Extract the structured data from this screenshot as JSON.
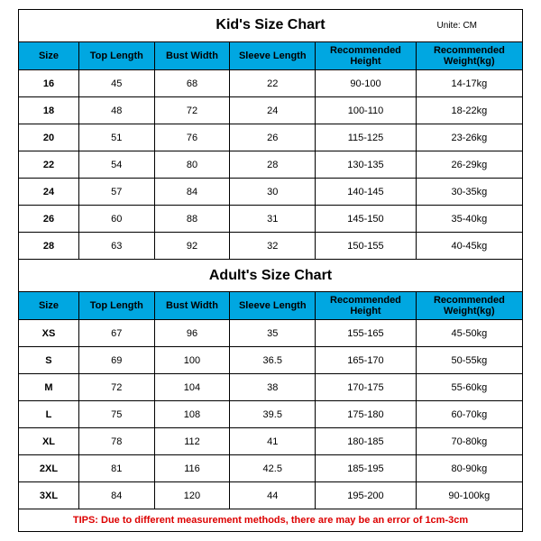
{
  "kids": {
    "title": "Kid's Size Chart",
    "unit": "Unite: CM",
    "columns": [
      "Size",
      "Top Length",
      "Bust Width",
      "Sleeve Length",
      "Recommended Height",
      "Recommended Weight(kg)"
    ],
    "rows": [
      [
        "16",
        "45",
        "68",
        "22",
        "90-100",
        "14-17kg"
      ],
      [
        "18",
        "48",
        "72",
        "24",
        "100-110",
        "18-22kg"
      ],
      [
        "20",
        "51",
        "76",
        "26",
        "115-125",
        "23-26kg"
      ],
      [
        "22",
        "54",
        "80",
        "28",
        "130-135",
        "26-29kg"
      ],
      [
        "24",
        "57",
        "84",
        "30",
        "140-145",
        "30-35kg"
      ],
      [
        "26",
        "60",
        "88",
        "31",
        "145-150",
        "35-40kg"
      ],
      [
        "28",
        "63",
        "92",
        "32",
        "150-155",
        "40-45kg"
      ]
    ]
  },
  "adults": {
    "title": "Adult's Size Chart",
    "columns": [
      "Size",
      "Top Length",
      "Bust Width",
      "Sleeve Length",
      "Recommended Height",
      "Recommended Weight(kg)"
    ],
    "rows": [
      [
        "XS",
        "67",
        "96",
        "35",
        "155-165",
        "45-50kg"
      ],
      [
        "S",
        "69",
        "100",
        "36.5",
        "165-170",
        "50-55kg"
      ],
      [
        "M",
        "72",
        "104",
        "38",
        "170-175",
        "55-60kg"
      ],
      [
        "L",
        "75",
        "108",
        "39.5",
        "175-180",
        "60-70kg"
      ],
      [
        "XL",
        "78",
        "112",
        "41",
        "180-185",
        "70-80kg"
      ],
      [
        "2XL",
        "81",
        "116",
        "42.5",
        "185-195",
        "80-90kg"
      ],
      [
        "3XL",
        "84",
        "120",
        "44",
        "195-200",
        "90-100kg"
      ]
    ]
  },
  "tips": "TIPS: Due to different measurement methods, there are may be an error of 1cm-3cm",
  "colors": {
    "header_bg": "#00a7e1",
    "border": "#000000",
    "tips": "#d00000",
    "background": "#ffffff"
  }
}
